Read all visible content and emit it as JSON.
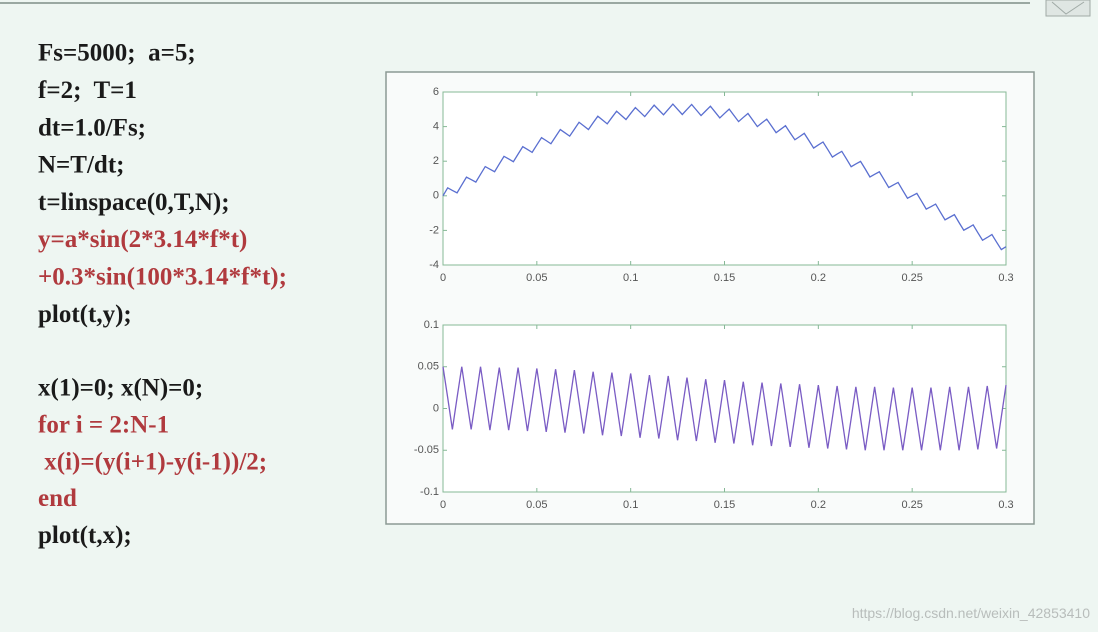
{
  "code_blocks": [
    [
      {
        "text": "Fs=5000;  a=5;",
        "color": "#1a1a1a"
      },
      {
        "text": "f=2;  T=1",
        "color": "#1a1a1a"
      },
      {
        "text": "dt=1.0/Fs;",
        "color": "#1a1a1a"
      },
      {
        "text": "N=T/dt;",
        "color": "#1a1a1a"
      },
      {
        "text": "t=linspace(0,T,N);",
        "color": "#1a1a1a"
      },
      {
        "text": "y=a*sin(2*3.14*f*t)",
        "color": "#b03a3e"
      },
      {
        "text": "+0.3*sin(100*3.14*f*t);",
        "color": "#b03a3e"
      },
      {
        "text": "plot(t,y);",
        "color": "#1a1a1a"
      }
    ],
    [
      {
        "text": "x(1)=0; x(N)=0;",
        "color": "#1a1a1a"
      },
      {
        "text": "for i = 2:N-1",
        "color": "#b03a3e"
      },
      {
        "text": " x(i)=(y(i+1)-y(i-1))/2;",
        "color": "#b03a3e"
      },
      {
        "text": "end",
        "color": "#b03a3e"
      },
      {
        "text": "plot(t,x);",
        "color": "#1a1a1a"
      }
    ]
  ],
  "chart_data": [
    {
      "type": "line",
      "color": "#5a6fd0",
      "x": [
        0,
        0.0025,
        0.005,
        0.0075,
        0.01,
        0.0125,
        0.015,
        0.0175,
        0.02,
        0.0225,
        0.025,
        0.0275,
        0.03,
        0.0325,
        0.035,
        0.0375,
        0.04,
        0.0425,
        0.045,
        0.0475,
        0.05,
        0.0525,
        0.055,
        0.0575,
        0.06,
        0.0625,
        0.065,
        0.0675,
        0.07,
        0.0725,
        0.075,
        0.0775,
        0.08,
        0.0825,
        0.085,
        0.0875,
        0.09,
        0.0925,
        0.095,
        0.0975,
        0.1,
        0.1025,
        0.105,
        0.1075,
        0.11,
        0.1125,
        0.115,
        0.1175,
        0.12,
        0.1225,
        0.125,
        0.1275,
        0.13,
        0.1325,
        0.135,
        0.1375,
        0.14,
        0.1425,
        0.145,
        0.1475,
        0.15,
        0.1525,
        0.155,
        0.1575,
        0.16,
        0.1625,
        0.165,
        0.1675,
        0.17,
        0.1725,
        0.175,
        0.1775,
        0.18,
        0.1825,
        0.185,
        0.1875,
        0.19,
        0.1925,
        0.195,
        0.1975,
        0.2,
        0.2025,
        0.205,
        0.2075,
        0.21,
        0.2125,
        0.215,
        0.2175,
        0.22,
        0.2225,
        0.225,
        0.2275,
        0.23,
        0.2325,
        0.235,
        0.2375,
        0.24,
        0.2425,
        0.245,
        0.2475,
        0.25,
        0.2525,
        0.255,
        0.2575,
        0.26,
        0.2625,
        0.265,
        0.2675,
        0.27,
        0.2725,
        0.275,
        0.2775,
        0.28,
        0.2825,
        0.285,
        0.2875,
        0.29,
        0.2925,
        0.295,
        0.2975,
        0.3
      ],
      "values": [
        0,
        0.46,
        0.31,
        0.17,
        0.63,
        1.08,
        0.94,
        0.79,
        1.24,
        1.69,
        1.54,
        1.39,
        1.84,
        2.28,
        2.13,
        1.97,
        2.41,
        2.84,
        2.68,
        2.51,
        2.94,
        3.36,
        3.19,
        3.01,
        3.42,
        3.83,
        3.64,
        3.45,
        3.85,
        4.25,
        4.04,
        3.83,
        4.22,
        4.6,
        4.38,
        4.16,
        4.53,
        4.89,
        4.65,
        4.41,
        4.76,
        5.1,
        4.84,
        4.58,
        4.91,
        5.24,
        4.96,
        4.68,
        4.99,
        5.3,
        5,
        4.7,
        4.99,
        5.28,
        4.96,
        4.64,
        4.91,
        5.18,
        4.84,
        4.5,
        4.76,
        5.01,
        4.65,
        4.29,
        4.53,
        4.76,
        4.38,
        4,
        4.22,
        4.43,
        4.04,
        3.65,
        3.85,
        4.05,
        3.64,
        3.24,
        3.42,
        3.61,
        3.19,
        2.76,
        2.94,
        3.11,
        2.68,
        2.24,
        2.41,
        2.57,
        2.13,
        1.68,
        1.84,
        1.99,
        1.55,
        1.09,
        1.24,
        1.39,
        0.94,
        0.48,
        0.63,
        0.77,
        0.31,
        -0.14,
        0,
        0.14,
        -0.31,
        -0.77,
        -0.63,
        -0.48,
        -0.94,
        -1.39,
        -1.24,
        -1.09,
        -1.55,
        -1.99,
        -1.84,
        -1.68,
        -2.13,
        -2.57,
        -2.41,
        -2.24,
        -2.68,
        -3.11,
        -2.94
      ],
      "xlim": [
        0,
        0.3
      ],
      "xticks": [
        0,
        0.05,
        0.1,
        0.15,
        0.2,
        0.25,
        0.3
      ],
      "ylim": [
        -4,
        6
      ],
      "yticks": [
        -4,
        -2,
        0,
        2,
        4,
        6
      ]
    },
    {
      "type": "line",
      "color": "#7a5cc4",
      "x": [
        0,
        0.0025,
        0.005,
        0.0075,
        0.01,
        0.0125,
        0.015,
        0.0175,
        0.02,
        0.0225,
        0.025,
        0.0275,
        0.03,
        0.0325,
        0.035,
        0.0375,
        0.04,
        0.0425,
        0.045,
        0.0475,
        0.05,
        0.0525,
        0.055,
        0.0575,
        0.06,
        0.0625,
        0.065,
        0.0675,
        0.07,
        0.0725,
        0.075,
        0.0775,
        0.08,
        0.0825,
        0.085,
        0.0875,
        0.09,
        0.0925,
        0.095,
        0.0975,
        0.1,
        0.1025,
        0.105,
        0.1075,
        0.11,
        0.1125,
        0.115,
        0.1175,
        0.12,
        0.1225,
        0.125,
        0.1275,
        0.13,
        0.1325,
        0.135,
        0.1375,
        0.14,
        0.1425,
        0.145,
        0.1475,
        0.15,
        0.1525,
        0.155,
        0.1575,
        0.16,
        0.1625,
        0.165,
        0.1675,
        0.17,
        0.1725,
        0.175,
        0.1775,
        0.18,
        0.1825,
        0.185,
        0.1875,
        0.19,
        0.1925,
        0.195,
        0.1975,
        0.2,
        0.2025,
        0.205,
        0.2075,
        0.21,
        0.2125,
        0.215,
        0.2175,
        0.22,
        0.2225,
        0.225,
        0.2275,
        0.23,
        0.2325,
        0.235,
        0.2375,
        0.24,
        0.2425,
        0.245,
        0.2475,
        0.25,
        0.2525,
        0.255,
        0.2575,
        0.26,
        0.2625,
        0.265,
        0.2675,
        0.27,
        0.2725,
        0.275,
        0.2775,
        0.28,
        0.2825,
        0.285,
        0.2875,
        0.29,
        0.2925,
        0.295,
        0.2975,
        0.3
      ],
      "values": [
        0.05,
        0.013,
        -0.025,
        0.013,
        0.05,
        0.012,
        -0.025,
        0.012,
        0.05,
        0.012,
        -0.026,
        0.012,
        0.049,
        0.012,
        -0.026,
        0.011,
        0.049,
        0.011,
        -0.027,
        0.01,
        0.048,
        0.01,
        -0.028,
        0.009,
        0.047,
        0.009,
        -0.029,
        0.008,
        0.046,
        0.008,
        -0.03,
        0.007,
        0.044,
        0.006,
        -0.032,
        0.006,
        0.043,
        0.005,
        -0.033,
        0.004,
        0.042,
        0.004,
        -0.035,
        0.003,
        0.04,
        0.002,
        -0.036,
        0.001,
        0.039,
        0,
        -0.038,
        0,
        0.037,
        -0.001,
        -0.039,
        -0.002,
        0.035,
        -0.003,
        -0.041,
        -0.004,
        0.034,
        -0.004,
        -0.042,
        -0.005,
        0.032,
        -0.006,
        -0.044,
        -0.006,
        0.031,
        -0.007,
        -0.045,
        -0.008,
        0.03,
        -0.008,
        -0.046,
        -0.009,
        0.029,
        -0.009,
        -0.047,
        -0.01,
        0.028,
        -0.01,
        -0.048,
        -0.011,
        0.027,
        -0.011,
        -0.049,
        -0.012,
        0.026,
        -0.012,
        -0.05,
        -0.012,
        0.026,
        -0.012,
        -0.05,
        -0.012,
        0.025,
        -0.013,
        -0.05,
        -0.013,
        0.025,
        -0.013,
        -0.05,
        -0.013,
        0.025,
        -0.012,
        -0.05,
        -0.012,
        0.026,
        -0.012,
        -0.05,
        -0.012,
        0.026,
        -0.012,
        -0.049,
        -0.011,
        0.027,
        -0.011,
        -0.048,
        -0.01,
        0.028
      ],
      "xlim": [
        0,
        0.3
      ],
      "xticks": [
        0,
        0.05,
        0.1,
        0.15,
        0.2,
        0.25,
        0.3
      ],
      "ylim": [
        -0.1,
        0.1
      ],
      "yticks": [
        -0.1,
        -0.05,
        0,
        0.05,
        0.1
      ]
    }
  ],
  "watermark": "https://blog.csdn.net/weixin_42853410"
}
